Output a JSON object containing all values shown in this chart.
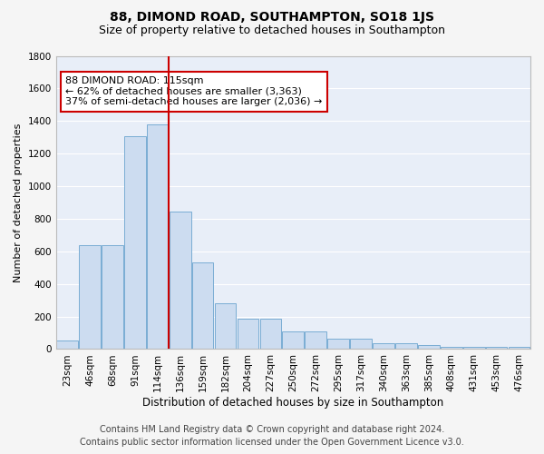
{
  "title": "88, DIMOND ROAD, SOUTHAMPTON, SO18 1JS",
  "subtitle": "Size of property relative to detached houses in Southampton",
  "xlabel": "Distribution of detached houses by size in Southampton",
  "ylabel": "Number of detached properties",
  "bar_color": "#ccdcf0",
  "bar_edge_color": "#7aadd4",
  "background_color": "#e8eef8",
  "grid_color": "#ffffff",
  "categories": [
    "23sqm",
    "46sqm",
    "68sqm",
    "91sqm",
    "114sqm",
    "136sqm",
    "159sqm",
    "182sqm",
    "204sqm",
    "227sqm",
    "250sqm",
    "272sqm",
    "295sqm",
    "317sqm",
    "340sqm",
    "363sqm",
    "385sqm",
    "408sqm",
    "431sqm",
    "453sqm",
    "476sqm"
  ],
  "values": [
    50,
    637,
    637,
    1307,
    1380,
    843,
    530,
    280,
    185,
    185,
    110,
    110,
    65,
    65,
    38,
    38,
    25,
    14,
    14,
    14,
    14
  ],
  "ylim": [
    0,
    1800
  ],
  "yticks": [
    0,
    200,
    400,
    600,
    800,
    1000,
    1200,
    1400,
    1600,
    1800
  ],
  "property_line_x": 4.5,
  "property_line_color": "#cc0000",
  "annotation_text": "88 DIMOND ROAD: 115sqm\n← 62% of detached houses are smaller (3,363)\n37% of semi-detached houses are larger (2,036) →",
  "annotation_box_color": "#ffffff",
  "annotation_box_edge": "#cc0000",
  "footer_line1": "Contains HM Land Registry data © Crown copyright and database right 2024.",
  "footer_line2": "Contains public sector information licensed under the Open Government Licence v3.0.",
  "title_fontsize": 10,
  "subtitle_fontsize": 9,
  "xlabel_fontsize": 8.5,
  "ylabel_fontsize": 8,
  "tick_fontsize": 7.5,
  "annotation_fontsize": 8,
  "footer_fontsize": 7
}
